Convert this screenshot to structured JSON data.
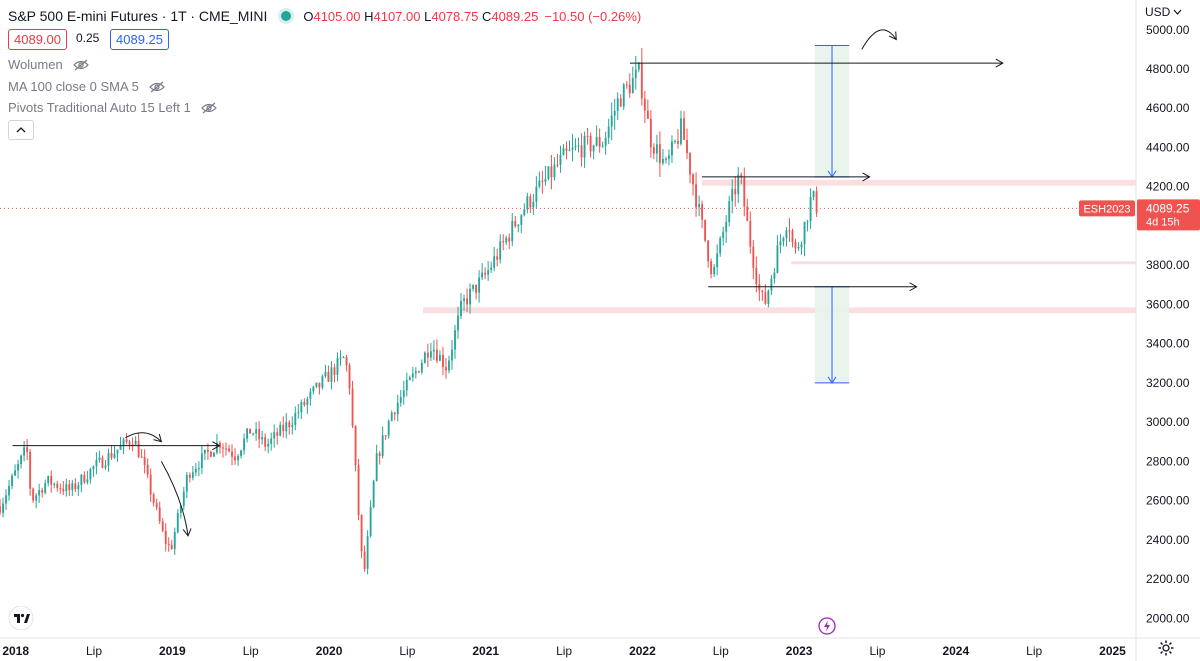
{
  "header": {
    "title": "S&P 500 E-mini Futures · 1T · CME_MINI",
    "status_color": "#26a69a",
    "ohlc": {
      "o_label": "O",
      "o": "4105.00",
      "h_label": "H",
      "h": "4107.00",
      "l_label": "L",
      "l": "4078.75",
      "c_label": "C",
      "c": "4089.25"
    },
    "change": "−10.50 (−0.26%)",
    "bid": "4089.00",
    "spread": "0.25",
    "ask": "4089.25"
  },
  "indicators": [
    {
      "label": "Wolumen"
    },
    {
      "label": "MA 100 close 0 SMA 5"
    },
    {
      "label": "Pivots Traditional Auto 15 Left 1"
    }
  ],
  "currency": "USD",
  "price_tag": {
    "symbol": "ESH2023",
    "price": "4089.25",
    "countdown": "4d 15h"
  },
  "colors": {
    "up": "#26a69a",
    "down": "#ef5350",
    "bid": "#f23645",
    "ask": "#2962ff",
    "zone": "#f9d9dc",
    "target_fill": "#e7f4ea",
    "target_line": "#2962ff",
    "drawing": "#131722"
  },
  "icons": [
    "tradingview-logo-icon",
    "gear-icon",
    "flash-icon",
    "eye-off-icon",
    "chevron-up-icon",
    "chevron-down-icon"
  ],
  "chart_data": {
    "type": "candlestick",
    "interval": "1 week",
    "y_axis": {
      "ticks": [
        "2000.00",
        "2200.00",
        "2400.00",
        "2600.00",
        "2800.00",
        "3000.00",
        "3200.00",
        "3400.00",
        "3600.00",
        "3800.00",
        "4000.00",
        "4200.00",
        "4400.00",
        "4600.00",
        "4800.00",
        "5000.00"
      ],
      "range": [
        1930,
        5060
      ],
      "position": "right"
    },
    "x_axis": {
      "ticks": [
        {
          "label": "2018",
          "t": 2018.0
        },
        {
          "label": "Lip",
          "t": 2018.5
        },
        {
          "label": "2019",
          "t": 2019.0
        },
        {
          "label": "Lip",
          "t": 2019.5
        },
        {
          "label": "2020",
          "t": 2020.0
        },
        {
          "label": "Lip",
          "t": 2020.5
        },
        {
          "label": "2021",
          "t": 2021.0
        },
        {
          "label": "Lip",
          "t": 2021.5
        },
        {
          "label": "2022",
          "t": 2022.0
        },
        {
          "label": "Lip",
          "t": 2022.5
        },
        {
          "label": "2023",
          "t": 2023.0
        },
        {
          "label": "Lip",
          "t": 2023.5
        },
        {
          "label": "2024",
          "t": 2024.0
        },
        {
          "label": "Lip",
          "t": 2024.5
        },
        {
          "label": "2025",
          "t": 2025.0
        }
      ],
      "range": [
        2017.9,
        2025.15
      ]
    },
    "last_price": 4089.25,
    "path_points": [
      [
        2017.9,
        2570
      ],
      [
        2018.07,
        2870
      ],
      [
        2018.1,
        2600
      ],
      [
        2018.2,
        2700
      ],
      [
        2018.35,
        2650
      ],
      [
        2018.5,
        2770
      ],
      [
        2018.75,
        2920
      ],
      [
        2018.8,
        2820
      ],
      [
        2018.95,
        2400
      ],
      [
        2018.99,
        2350
      ],
      [
        2019.1,
        2740
      ],
      [
        2019.3,
        2900
      ],
      [
        2019.4,
        2830
      ],
      [
        2019.5,
        2960
      ],
      [
        2019.6,
        2880
      ],
      [
        2019.75,
        3000
      ],
      [
        2019.9,
        3150
      ],
      [
        2020.1,
        3330
      ],
      [
        2020.13,
        3200
      ],
      [
        2020.2,
        2400
      ],
      [
        2020.22,
        2200
      ],
      [
        2020.3,
        2800
      ],
      [
        2020.4,
        3050
      ],
      [
        2020.55,
        3250
      ],
      [
        2020.65,
        3400
      ],
      [
        2020.75,
        3280
      ],
      [
        2020.85,
        3600
      ],
      [
        2021.0,
        3750
      ],
      [
        2021.25,
        4100
      ],
      [
        2021.5,
        4350
      ],
      [
        2021.6,
        4400
      ],
      [
        2021.75,
        4430
      ],
      [
        2021.85,
        4650
      ],
      [
        2021.98,
        4780
      ],
      [
        2022.05,
        4450
      ],
      [
        2022.15,
        4300
      ],
      [
        2022.25,
        4500
      ],
      [
        2022.38,
        4000
      ],
      [
        2022.45,
        3750
      ],
      [
        2022.55,
        4080
      ],
      [
        2022.62,
        4260
      ],
      [
        2022.68,
        3950
      ],
      [
        2022.75,
        3650
      ],
      [
        2022.78,
        3600
      ],
      [
        2022.87,
        3900
      ],
      [
        2022.93,
        4050
      ],
      [
        2022.97,
        3850
      ],
      [
        2023.03,
        3990
      ],
      [
        2023.08,
        4150
      ],
      [
        2023.12,
        4089
      ]
    ],
    "zones": [
      {
        "from_t": 2022.38,
        "to_t": 2025.15,
        "low": 4205,
        "high": 4235
      },
      {
        "from_t": 2022.95,
        "to_t": 2025.15,
        "low": 3805,
        "high": 3820
      },
      {
        "from_t": 2020.6,
        "to_t": 2025.15,
        "low": 3555,
        "high": 3585
      }
    ],
    "target_boxes": [
      {
        "from_t": 2023.1,
        "to_t": 2023.32,
        "low": 4250,
        "high": 4920,
        "direction": "down"
      },
      {
        "from_t": 2023.1,
        "to_t": 2023.32,
        "low": 3200,
        "high": 3690,
        "direction": "down"
      }
    ],
    "drawn_lines": [
      {
        "t1": 2017.98,
        "t2": 2019.3,
        "price": 2880
      },
      {
        "t1": 2021.92,
        "t2": 2024.3,
        "price": 4830
      },
      {
        "t1": 2022.38,
        "t2": 2023.45,
        "price": 4250
      },
      {
        "t1": 2022.42,
        "t2": 2023.75,
        "price": 3690
      }
    ],
    "drawn_curves": [
      {
        "name": "arc-top-2018",
        "points": [
          [
            2018.7,
            2920
          ],
          [
            2018.83,
            2980
          ],
          [
            2018.93,
            2900
          ]
        ]
      },
      {
        "name": "arrow-down-2018",
        "points": [
          [
            2018.93,
            2800
          ],
          [
            2019.07,
            2600
          ],
          [
            2019.1,
            2420
          ]
        ]
      },
      {
        "name": "arc-top-2023",
        "points": [
          [
            2023.4,
            4900
          ],
          [
            2023.52,
            5070
          ],
          [
            2023.62,
            4950
          ]
        ]
      }
    ]
  }
}
